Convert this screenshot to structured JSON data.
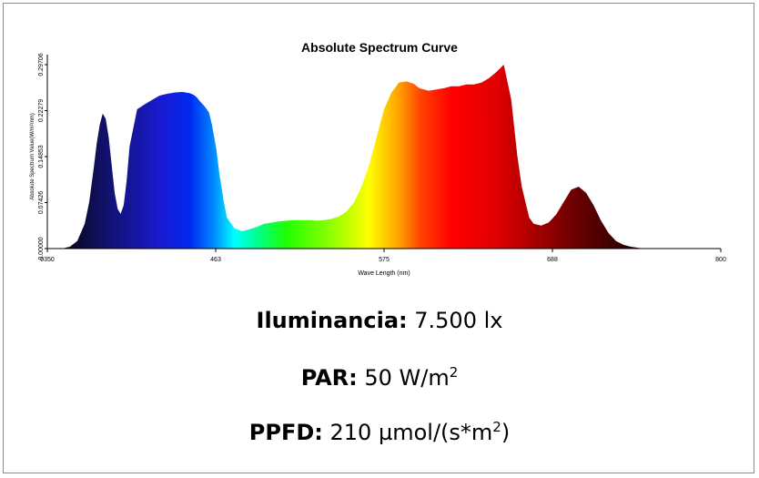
{
  "chart_data": {
    "type": "area",
    "title": "Absolute Spectrum Curve",
    "xlabel": "Wave Length (nm)",
    "ylabel": "Absolute Spectrum Value(W/m²/nm)",
    "xlim": [
      350,
      800
    ],
    "ylim": [
      0,
      0.29706
    ],
    "x_ticks": [
      "0350",
      "463",
      "575",
      "688",
      "800"
    ],
    "y_ticks": [
      "0.00000",
      "0.07426",
      "0.14853",
      "0.22279",
      "0.29706"
    ],
    "grid": false,
    "legend": "none",
    "x": [
      360,
      365,
      370,
      375,
      378,
      381,
      383,
      385,
      387,
      389,
      391,
      393,
      395,
      397,
      399,
      401,
      403,
      405,
      410,
      415,
      420,
      425,
      430,
      435,
      440,
      445,
      448,
      450,
      452,
      455,
      458,
      460,
      463,
      465,
      468,
      470,
      475,
      480,
      485,
      490,
      495,
      500,
      505,
      510,
      515,
      520,
      525,
      530,
      535,
      540,
      545,
      550,
      555,
      560,
      565,
      570,
      575,
      580,
      585,
      590,
      595,
      598,
      600,
      605,
      610,
      615,
      620,
      625,
      630,
      635,
      640,
      645,
      650,
      655,
      660,
      664,
      667,
      670,
      672,
      675,
      680,
      685,
      690,
      695,
      700,
      705,
      710,
      715,
      720,
      725,
      730,
      735,
      740,
      745,
      750,
      760
    ],
    "values": [
      0.0,
      0.003,
      0.012,
      0.04,
      0.075,
      0.13,
      0.17,
      0.2,
      0.218,
      0.21,
      0.18,
      0.135,
      0.09,
      0.064,
      0.056,
      0.07,
      0.11,
      0.165,
      0.225,
      0.233,
      0.24,
      0.247,
      0.25,
      0.252,
      0.253,
      0.251,
      0.248,
      0.244,
      0.238,
      0.23,
      0.22,
      0.2,
      0.16,
      0.12,
      0.075,
      0.05,
      0.033,
      0.028,
      0.031,
      0.035,
      0.04,
      0.042,
      0.044,
      0.045,
      0.046,
      0.046,
      0.046,
      0.045,
      0.046,
      0.048,
      0.052,
      0.06,
      0.075,
      0.1,
      0.135,
      0.18,
      0.225,
      0.252,
      0.268,
      0.27,
      0.266,
      0.26,
      0.258,
      0.255,
      0.257,
      0.259,
      0.262,
      0.262,
      0.265,
      0.265,
      0.268,
      0.275,
      0.285,
      0.297,
      0.24,
      0.15,
      0.1,
      0.07,
      0.05,
      0.04,
      0.037,
      0.042,
      0.055,
      0.075,
      0.095,
      0.1,
      0.09,
      0.07,
      0.045,
      0.025,
      0.012,
      0.006,
      0.003,
      0.001,
      0.0,
      0.0
    ]
  },
  "stats": {
    "illuminance": {
      "label": "Iluminancia:",
      "value": "7.500 lx"
    },
    "par": {
      "label": "PAR:",
      "value": "50 W/m",
      "sup": "2"
    },
    "ppfd": {
      "label": "PPFD:",
      "value": "210 µmol/(s*m",
      "sup": "2",
      "suffix": ")"
    }
  }
}
